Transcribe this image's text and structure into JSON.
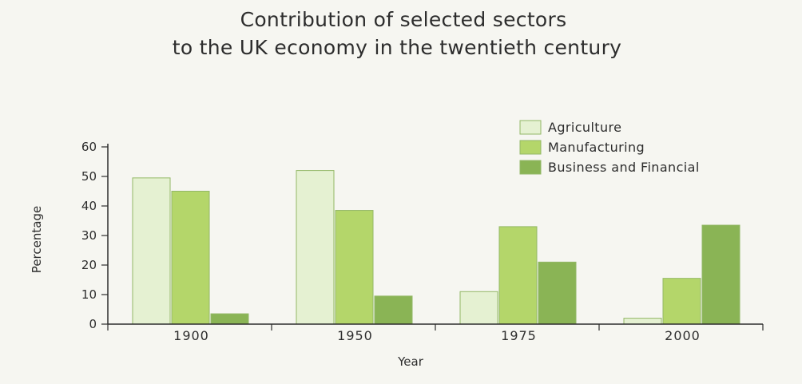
{
  "chart_data": {
    "type": "bar",
    "title_lines": [
      "Contribution of selected sectors",
      "to the UK economy in the twentieth century"
    ],
    "xlabel": "Year",
    "ylabel": "Percentage",
    "categories": [
      "1900",
      "1950",
      "1975",
      "2000"
    ],
    "y_ticks": [
      "0",
      "10",
      "20",
      "30",
      "40",
      "50",
      "60"
    ],
    "ylim": [
      0,
      60
    ],
    "grid": false,
    "legend_position": "top-right",
    "series": [
      {
        "name": "Agriculture",
        "values": [
          49.5,
          52,
          11,
          2
        ],
        "color": "#e5f1d2"
      },
      {
        "name": "Manufacturing",
        "values": [
          45,
          38.5,
          33,
          15.5
        ],
        "color": "#b4d66a"
      },
      {
        "name": "Business and Financial",
        "values": [
          3.5,
          9.5,
          21,
          33.5
        ],
        "color": "#8ab455"
      }
    ]
  }
}
